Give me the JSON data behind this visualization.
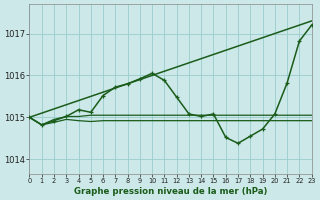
{
  "title": "Graphe pression niveau de la mer (hPa)",
  "bg_color": "#cce8e8",
  "grid_color": "#99cccc",
  "line_color": "#1a5c1a",
  "xlim": [
    0,
    23
  ],
  "ylim": [
    1013.65,
    1017.7
  ],
  "xticks": [
    0,
    1,
    2,
    3,
    4,
    5,
    6,
    7,
    8,
    9,
    10,
    11,
    12,
    13,
    14,
    15,
    16,
    17,
    18,
    19,
    20,
    21,
    22,
    23
  ],
  "yticks": [
    1014,
    1015,
    1016,
    1017
  ],
  "lines": [
    {
      "x": [
        0,
        1,
        2,
        3,
        4,
        5,
        6,
        7,
        8,
        9,
        10,
        11,
        12,
        13,
        14,
        15,
        16,
        17,
        18,
        19,
        20,
        21,
        22,
        23
      ],
      "y": [
        1015.0,
        1014.82,
        1014.88,
        1014.95,
        1014.92,
        1014.9,
        1014.92,
        1014.92,
        1014.92,
        1014.92,
        1014.92,
        1014.92,
        1014.92,
        1014.92,
        1014.92,
        1014.92,
        1014.92,
        1014.92,
        1014.92,
        1014.92,
        1014.92,
        1014.92,
        1014.92,
        1014.92
      ],
      "marker": false,
      "lw": 0.9
    },
    {
      "x": [
        0,
        1,
        2,
        3,
        4,
        5,
        6,
        7,
        8,
        9,
        10,
        11,
        12,
        13,
        14,
        15,
        16,
        17,
        18,
        19,
        20,
        21,
        22,
        23
      ],
      "y": [
        1015.0,
        1014.82,
        1014.95,
        1015.02,
        1015.02,
        1015.05,
        1015.05,
        1015.05,
        1015.05,
        1015.05,
        1015.05,
        1015.05,
        1015.05,
        1015.05,
        1015.05,
        1015.05,
        1015.05,
        1015.05,
        1015.05,
        1015.05,
        1015.05,
        1015.05,
        1015.05,
        1015.05
      ],
      "marker": false,
      "lw": 0.9
    },
    {
      "x": [
        0,
        1,
        2,
        3,
        4,
        5,
        6,
        7,
        8,
        9,
        10,
        11,
        12,
        13,
        14,
        15,
        16,
        17,
        18,
        19,
        20,
        21,
        22,
        23
      ],
      "y": [
        1015.0,
        1014.82,
        1014.92,
        1015.02,
        1015.18,
        1015.12,
        1015.52,
        1015.72,
        1015.8,
        1015.92,
        1016.05,
        1015.88,
        1015.48,
        1015.08,
        1015.02,
        1015.08,
        1014.52,
        1014.38,
        1014.55,
        1014.72,
        1015.08,
        1015.82,
        1016.82,
        1017.2
      ],
      "marker": true,
      "lw": 1.1
    },
    {
      "x": [
        0,
        23
      ],
      "y": [
        1015.0,
        1017.3
      ],
      "marker": false,
      "lw": 1.1
    }
  ]
}
